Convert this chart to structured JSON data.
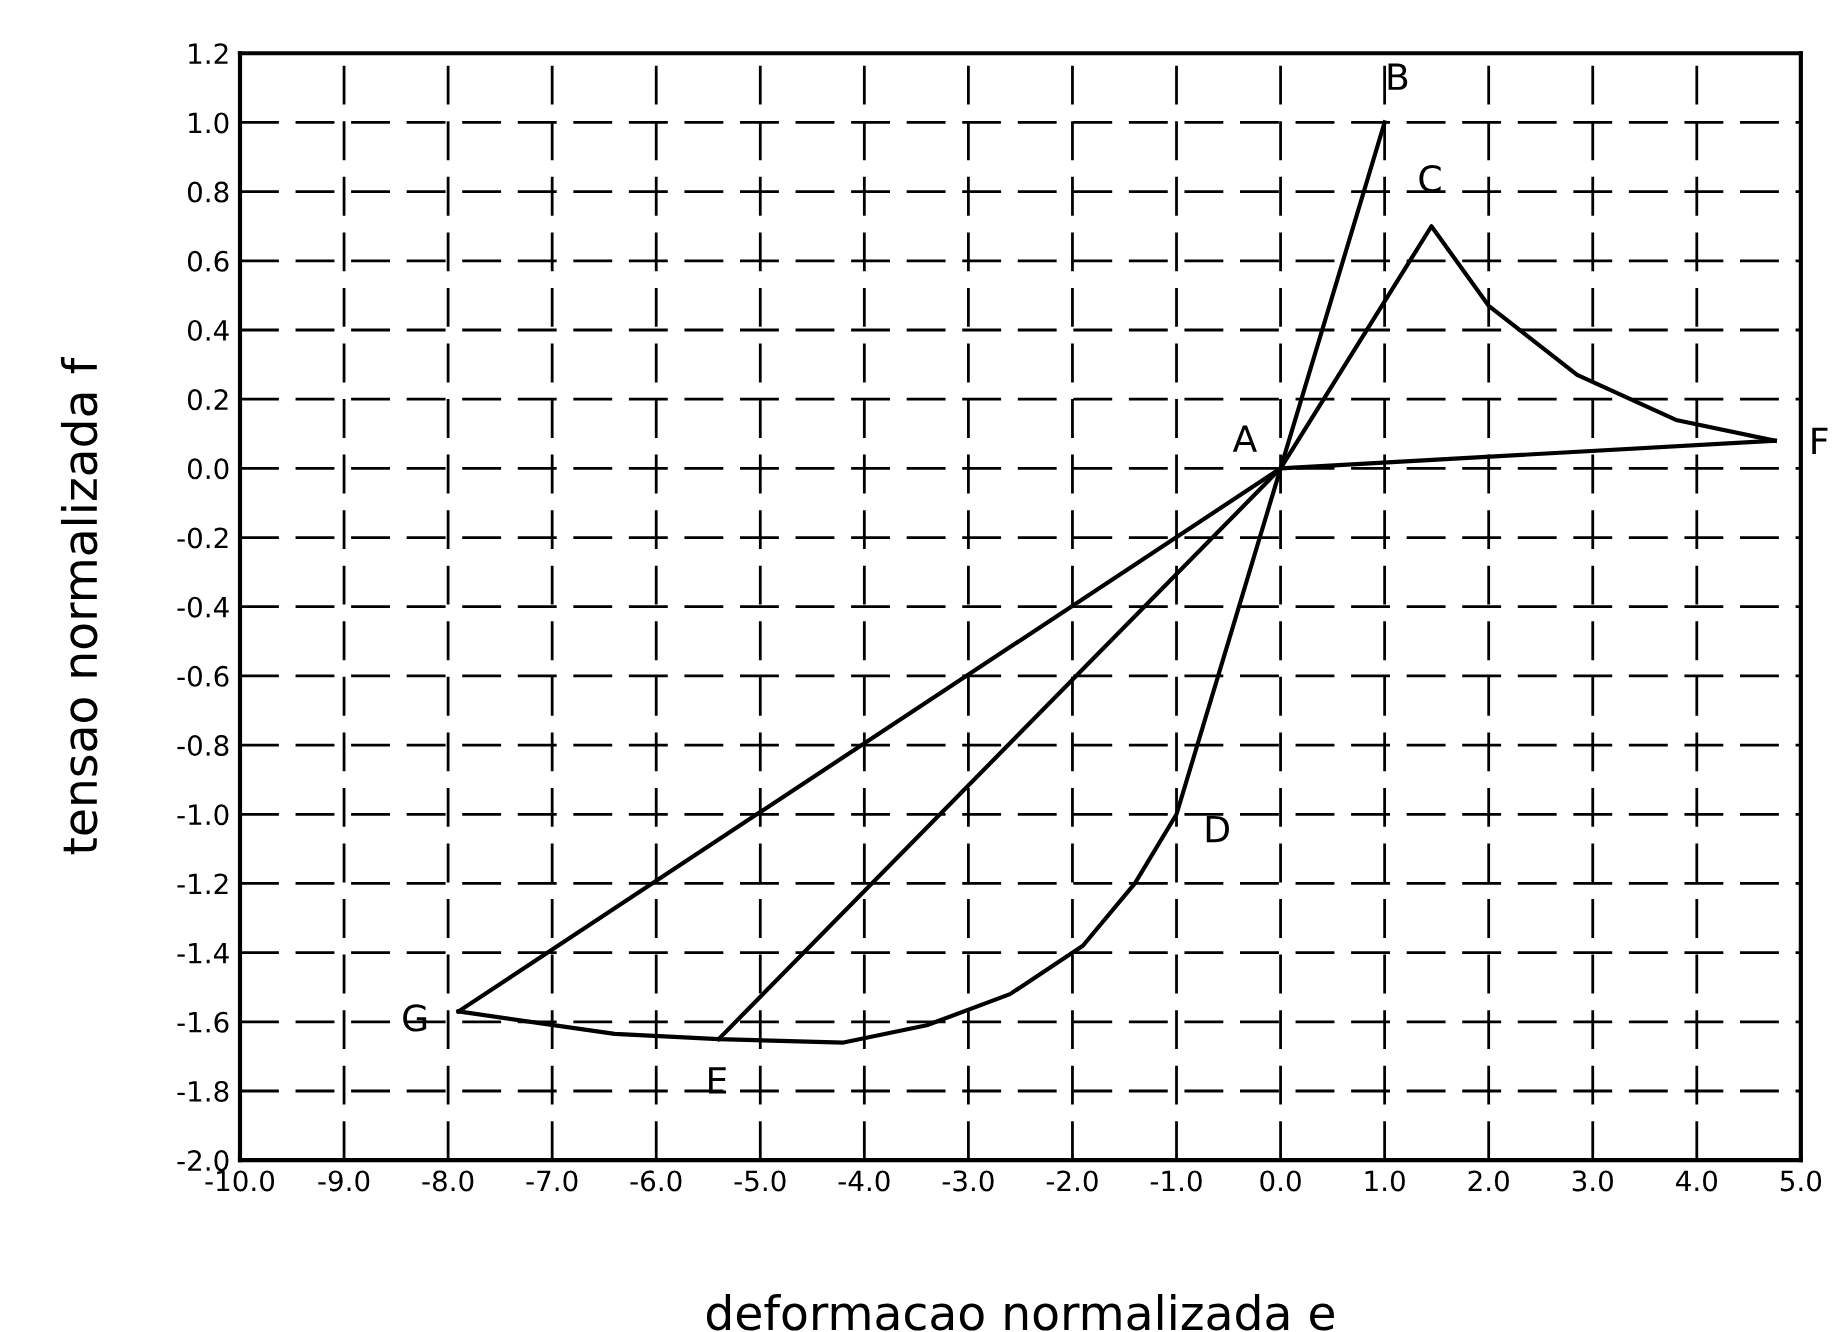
{
  "chart_data": {
    "type": "line",
    "xlabel": "deformacao normalizada e",
    "ylabel": "tensao normalizada f",
    "series": [
      {
        "color": "#000000",
        "x": [
          1.0,
          0,
          -1.0,
          -1.4,
          -1.9,
          -2.6,
          -3.4,
          -4.2,
          -5.4,
          -6.4,
          -7.9
        ],
        "values": [
          1.0,
          0,
          -1.0,
          -1.2,
          -1.38,
          -1.52,
          -1.61,
          -1.66,
          -1.65,
          -1.635,
          -1.57
        ]
      },
      {
        "color": "#000000",
        "x": [
          -5.4,
          0,
          1.45,
          2.0,
          2.85,
          3.8,
          4.75
        ],
        "values": [
          -1.65,
          0,
          0.7,
          0.47,
          0.27,
          0.14,
          0.08
        ]
      },
      {
        "color": "#000000",
        "x": [
          -7.9,
          0,
          4.75
        ],
        "values": [
          -1.57,
          0,
          0.08
        ]
      }
    ],
    "annotations": [
      {
        "text": "A",
        "x": 0,
        "y": 0
      },
      {
        "text": "B",
        "x": 1.0,
        "y": 1.0
      },
      {
        "text": "C",
        "x": 1.45,
        "y": 0.7
      },
      {
        "text": "D",
        "x": -1.0,
        "y": -1.0
      },
      {
        "text": "E",
        "x": -5.4,
        "y": -1.65
      },
      {
        "text": "F",
        "x": 4.75,
        "y": 0.08
      },
      {
        "text": "G",
        "x": -7.9,
        "y": -1.57
      }
    ],
    "xlim": [
      -10,
      5
    ],
    "ylim": [
      -2.0,
      1.2
    ],
    "xticks": [
      {
        "value": -10,
        "label": "-10.0"
      },
      {
        "value": -9,
        "label": "-9.0"
      },
      {
        "value": -8,
        "label": "-8.0"
      },
      {
        "value": -7,
        "label": "-7.0"
      },
      {
        "value": -6,
        "label": "-6.0"
      },
      {
        "value": -5,
        "label": "-5.0"
      },
      {
        "value": -4,
        "label": "-4.0"
      },
      {
        "value": -3,
        "label": "-3.0"
      },
      {
        "value": -2,
        "label": "-2.0"
      },
      {
        "value": -1,
        "label": "-1.0"
      },
      {
        "value": 0,
        "label": "0.0"
      },
      {
        "value": 1,
        "label": "1.0"
      },
      {
        "value": 2,
        "label": "2.0"
      },
      {
        "value": 3,
        "label": "3.0"
      },
      {
        "value": 4,
        "label": "4.0"
      },
      {
        "value": 5,
        "label": "5.0"
      }
    ],
    "yticks": [
      {
        "value": -2.0,
        "label": "-2.0"
      },
      {
        "value": -1.8,
        "label": "-1.8"
      },
      {
        "value": -1.6,
        "label": "-1.6"
      },
      {
        "value": -1.4,
        "label": "-1.4"
      },
      {
        "value": -1.2,
        "label": "-1.2"
      },
      {
        "value": -1.0,
        "label": "-1.0"
      },
      {
        "value": -0.8,
        "label": "-0.8"
      },
      {
        "value": -0.6,
        "label": "-0.6"
      },
      {
        "value": -0.4,
        "label": "-0.4"
      },
      {
        "value": -0.2,
        "label": "-0.2"
      },
      {
        "value": 0,
        "label": "0.0"
      },
      {
        "value": 0.2,
        "label": "0.2"
      },
      {
        "value": 0.4,
        "label": "0.4"
      },
      {
        "value": 0.6,
        "label": "0.6"
      },
      {
        "value": 0.8,
        "label": "0.8"
      },
      {
        "value": 1.0,
        "label": "1.0"
      },
      {
        "value": 1.2,
        "label": "1.2"
      }
    ],
    "grid": true,
    "marker": "none",
    "line_style": "solid"
  }
}
